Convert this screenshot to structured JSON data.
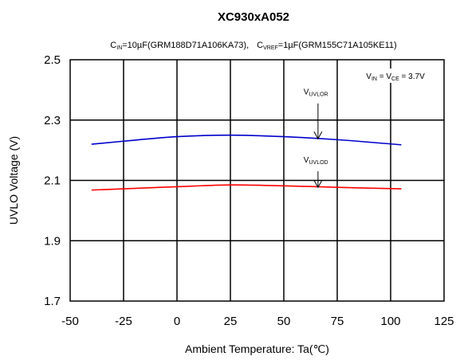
{
  "chart_data": {
    "type": "line",
    "title": "XC930xA052",
    "subtitle": {
      "cin_main": "C",
      "cin_sub": "IN",
      "cin_value": "=10µF(GRM188D71A106KA73),",
      "cvref_main": "C",
      "cvref_sub": "VREF",
      "cvref_value": "=1µF(GRM155C71A105KE11)"
    },
    "xlabel": "Ambient Temperature: Ta(℃)",
    "ylabel": "UVLO Voltage (V)",
    "xlim": [
      -50,
      125
    ],
    "ylim": [
      1.7,
      2.5
    ],
    "x_ticks": [
      "-50",
      "-25",
      "0",
      "25",
      "50",
      "75",
      "100",
      "125"
    ],
    "y_ticks": [
      "1.7",
      "1.9",
      "2.1",
      "2.3",
      "2.5"
    ],
    "grid": true,
    "condition": {
      "v1_main": "V",
      "v1_sub": "IN",
      "eq1": " = ",
      "v2_main": "V",
      "v2_sub": "CE",
      "eq2": " = 3.7V"
    },
    "series": [
      {
        "label_main": "V",
        "label_sub": "UVLOR",
        "color": "#0000cc",
        "x": [
          -40,
          -25,
          0,
          25,
          50,
          75,
          105
        ],
        "y": [
          2.22,
          2.23,
          2.245,
          2.25,
          2.245,
          2.235,
          2.218
        ]
      },
      {
        "label_main": "V",
        "label_sub": "UVLOD",
        "color": "#ff0000",
        "x": [
          -40,
          -25,
          0,
          25,
          50,
          75,
          105
        ],
        "y": [
          2.068,
          2.072,
          2.079,
          2.085,
          2.082,
          2.077,
          2.072
        ]
      }
    ],
    "annotations": [
      {
        "series": 0,
        "label_x": 65,
        "label_y": 2.385,
        "arrow_x": 66,
        "arrow_y_start": 2.355,
        "arrow_y_end": 2.238
      },
      {
        "series": 1,
        "label_x": 65,
        "label_y": 2.16,
        "arrow_x": 66,
        "arrow_y_start": 2.13,
        "arrow_y_end": 2.077
      }
    ]
  }
}
